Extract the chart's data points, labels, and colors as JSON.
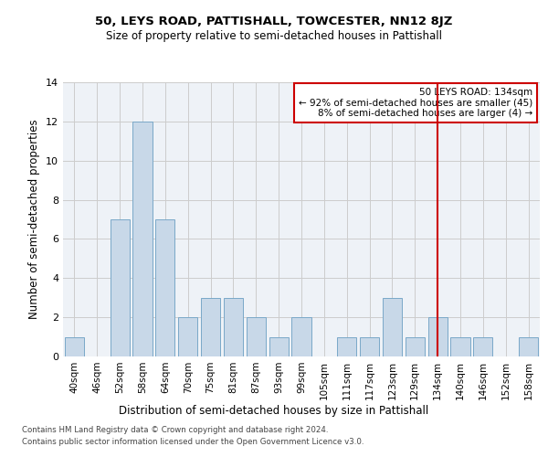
{
  "title": "50, LEYS ROAD, PATTISHALL, TOWCESTER, NN12 8JZ",
  "subtitle": "Size of property relative to semi-detached houses in Pattishall",
  "xlabel": "Distribution of semi-detached houses by size in Pattishall",
  "ylabel": "Number of semi-detached properties",
  "categories": [
    "40sqm",
    "46sqm",
    "52sqm",
    "58sqm",
    "64sqm",
    "70sqm",
    "75sqm",
    "81sqm",
    "87sqm",
    "93sqm",
    "99sqm",
    "105sqm",
    "111sqm",
    "117sqm",
    "123sqm",
    "129sqm",
    "134sqm",
    "140sqm",
    "146sqm",
    "152sqm",
    "158sqm"
  ],
  "values": [
    1,
    0,
    7,
    12,
    7,
    2,
    3,
    3,
    2,
    1,
    2,
    0,
    1,
    1,
    3,
    1,
    2,
    1,
    1,
    0,
    1
  ],
  "bar_color": "#c8d8e8",
  "bar_edge_color": "#7aa8c8",
  "highlight_line_index": 16,
  "highlight_line_color": "#cc0000",
  "annotation_title": "50 LEYS ROAD: 134sqm",
  "annotation_line1": "← 92% of semi-detached houses are smaller (45)",
  "annotation_line2": "8% of semi-detached houses are larger (4) →",
  "annotation_box_color": "#cc0000",
  "ylim": [
    0,
    14
  ],
  "yticks": [
    0,
    2,
    4,
    6,
    8,
    10,
    12,
    14
  ],
  "footer1": "Contains HM Land Registry data © Crown copyright and database right 2024.",
  "footer2": "Contains public sector information licensed under the Open Government Licence v3.0.",
  "bg_color": "#eef2f7",
  "grid_color": "#cccccc",
  "title_fontsize": 9.5,
  "subtitle_fontsize": 8.5
}
